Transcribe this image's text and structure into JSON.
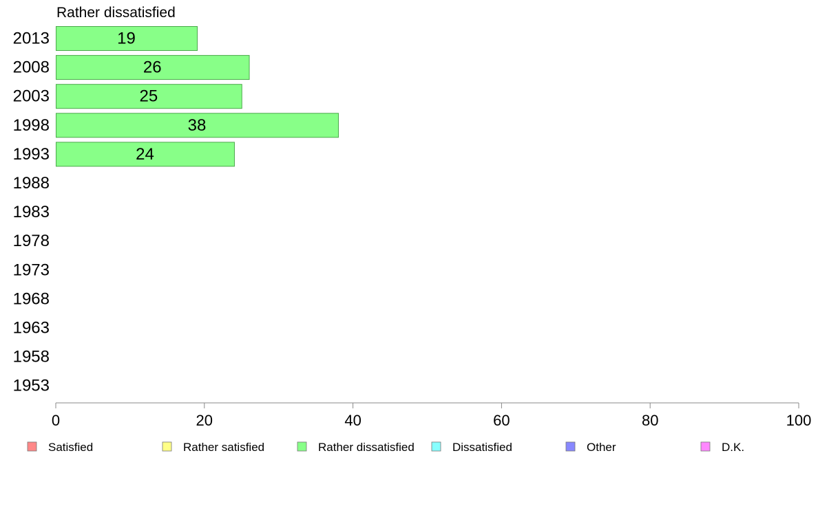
{
  "chart_data": {
    "type": "bar",
    "orientation": "horizontal",
    "title": "Rather dissatisfied",
    "categories": [
      "2013",
      "2008",
      "2003",
      "1998",
      "1993",
      "1988",
      "1983",
      "1978",
      "1973",
      "1968",
      "1963",
      "1958",
      "1953"
    ],
    "series": [
      {
        "name": "Rather dissatisfied",
        "color": "#88ff88",
        "values": [
          19,
          26,
          25,
          38,
          24,
          null,
          null,
          null,
          null,
          null,
          null,
          null,
          null
        ]
      }
    ],
    "xlim": [
      0,
      100
    ],
    "xticks": [
      0,
      20,
      40,
      60,
      80,
      100
    ],
    "grid": false,
    "legend_position": "bottom",
    "legend": [
      {
        "label": "Satisfied",
        "color": "#ff8888"
      },
      {
        "label": "Rather satisfied",
        "color": "#ffff88"
      },
      {
        "label": "Rather dissatisfied",
        "color": "#88ff88"
      },
      {
        "label": "Dissatisfied",
        "color": "#88ffff"
      },
      {
        "label": "Other",
        "color": "#8888ff"
      },
      {
        "label": "D.K.",
        "color": "#ff88ff"
      }
    ]
  }
}
